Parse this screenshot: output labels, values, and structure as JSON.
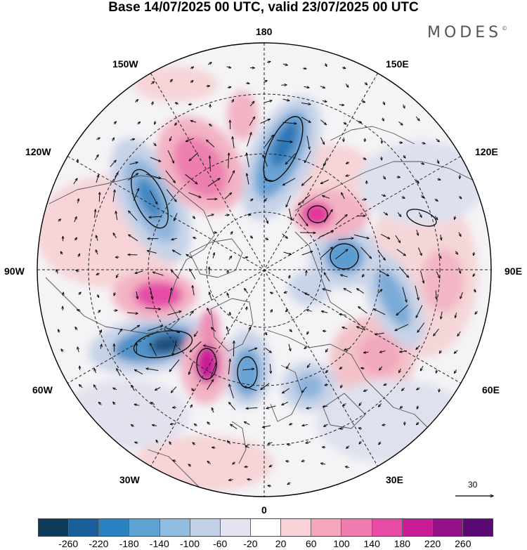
{
  "title": "Base 14/07/2025 00 UTC, valid 23/07/2025 00 UTC",
  "brand": {
    "name": "MODES",
    "mark": "©"
  },
  "longitude_labels": {
    "lon_180": "180",
    "lon_150e": "150E",
    "lon_120e": "120E",
    "lon_90e": "90E",
    "lon_60e": "60E",
    "lon_30e": "30E",
    "lon_0": "0",
    "lon_30w": "30W",
    "lon_60w": "60W",
    "lon_90w": "90W",
    "lon_120w": "120W",
    "lon_150w": "150W"
  },
  "map": {
    "projection": "north-polar-stereographic",
    "graticule": "dashed",
    "field": "anomaly shading with wind vectors",
    "reference_vector": {
      "value": "30",
      "icon": "arrow-right-icon"
    }
  },
  "colorbar": {
    "colors": [
      "#0f3b5a",
      "#19609a",
      "#2b82c0",
      "#5ea3d4",
      "#93bde0",
      "#c2d0e8",
      "#e6e4f2",
      "#ffffff",
      "#f8d2d6",
      "#f4a6bc",
      "#ef7bb0",
      "#e64ba6",
      "#c81d96",
      "#96108a",
      "#5a0a74"
    ],
    "tick_labels": [
      "-260",
      "-220",
      "-180",
      "-140",
      "-100",
      "-60",
      "-20",
      "20",
      "60",
      "100",
      "140",
      "180",
      "220",
      "260"
    ]
  }
}
